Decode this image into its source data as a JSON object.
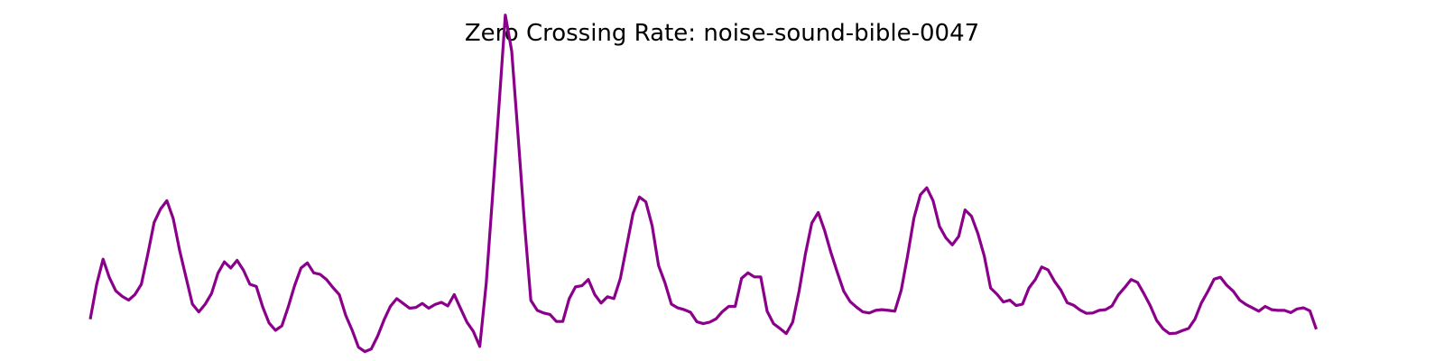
{
  "chart_data": {
    "type": "line",
    "title": "Zero Crossing Rate: noise-sound-bible-0047",
    "xlabel": "",
    "ylabel": "",
    "axes_visible": false,
    "grid": false,
    "line_color": "#8b008b",
    "x_range": [
      0,
      199
    ],
    "y_range": [
      0,
      1
    ],
    "series": [
      {
        "values": [
          0.133,
          0.228,
          0.296,
          0.246,
          0.21,
          0.195,
          0.185,
          0.2,
          0.228,
          0.309,
          0.396,
          0.432,
          0.455,
          0.406,
          0.319,
          0.247,
          0.174,
          0.153,
          0.174,
          0.203,
          0.258,
          0.289,
          0.272,
          0.293,
          0.266,
          0.228,
          0.222,
          0.167,
          0.123,
          0.103,
          0.115,
          0.166,
          0.224,
          0.272,
          0.286,
          0.259,
          0.255,
          0.241,
          0.219,
          0.2,
          0.144,
          0.104,
          0.057,
          0.045,
          0.052,
          0.087,
          0.131,
          0.168,
          0.189,
          0.176,
          0.163,
          0.165,
          0.176,
          0.163,
          0.173,
          0.179,
          0.169,
          0.2,
          0.162,
          0.125,
          0.1,
          0.059,
          0.229,
          0.465,
          0.709,
          0.959,
          0.861,
          0.63,
          0.395,
          0.184,
          0.157,
          0.15,
          0.146,
          0.127,
          0.127,
          0.189,
          0.221,
          0.224,
          0.241,
          0.2,
          0.177,
          0.194,
          0.189,
          0.243,
          0.331,
          0.42,
          0.465,
          0.452,
          0.387,
          0.279,
          0.232,
          0.174,
          0.164,
          0.159,
          0.152,
          0.126,
          0.121,
          0.125,
          0.134,
          0.154,
          0.168,
          0.168,
          0.244,
          0.259,
          0.248,
          0.248,
          0.155,
          0.121,
          0.108,
          0.094,
          0.125,
          0.209,
          0.31,
          0.394,
          0.423,
          0.374,
          0.314,
          0.26,
          0.209,
          0.181,
          0.166,
          0.153,
          0.15,
          0.157,
          0.159,
          0.157,
          0.155,
          0.212,
          0.305,
          0.408,
          0.471,
          0.49,
          0.455,
          0.385,
          0.354,
          0.335,
          0.358,
          0.43,
          0.413,
          0.366,
          0.305,
          0.218,
          0.201,
          0.18,
          0.185,
          0.17,
          0.174,
          0.218,
          0.241,
          0.275,
          0.267,
          0.236,
          0.212,
          0.178,
          0.171,
          0.158,
          0.149,
          0.15,
          0.157,
          0.159,
          0.169,
          0.199,
          0.219,
          0.241,
          0.233,
          0.203,
          0.17,
          0.13,
          0.107,
          0.094,
          0.095,
          0.102,
          0.108,
          0.133,
          0.177,
          0.208,
          0.242,
          0.247,
          0.225,
          0.209,
          0.185,
          0.173,
          0.164,
          0.155,
          0.168,
          0.159,
          0.157,
          0.157,
          0.151,
          0.161,
          0.164,
          0.156,
          0.106
        ]
      }
    ]
  }
}
